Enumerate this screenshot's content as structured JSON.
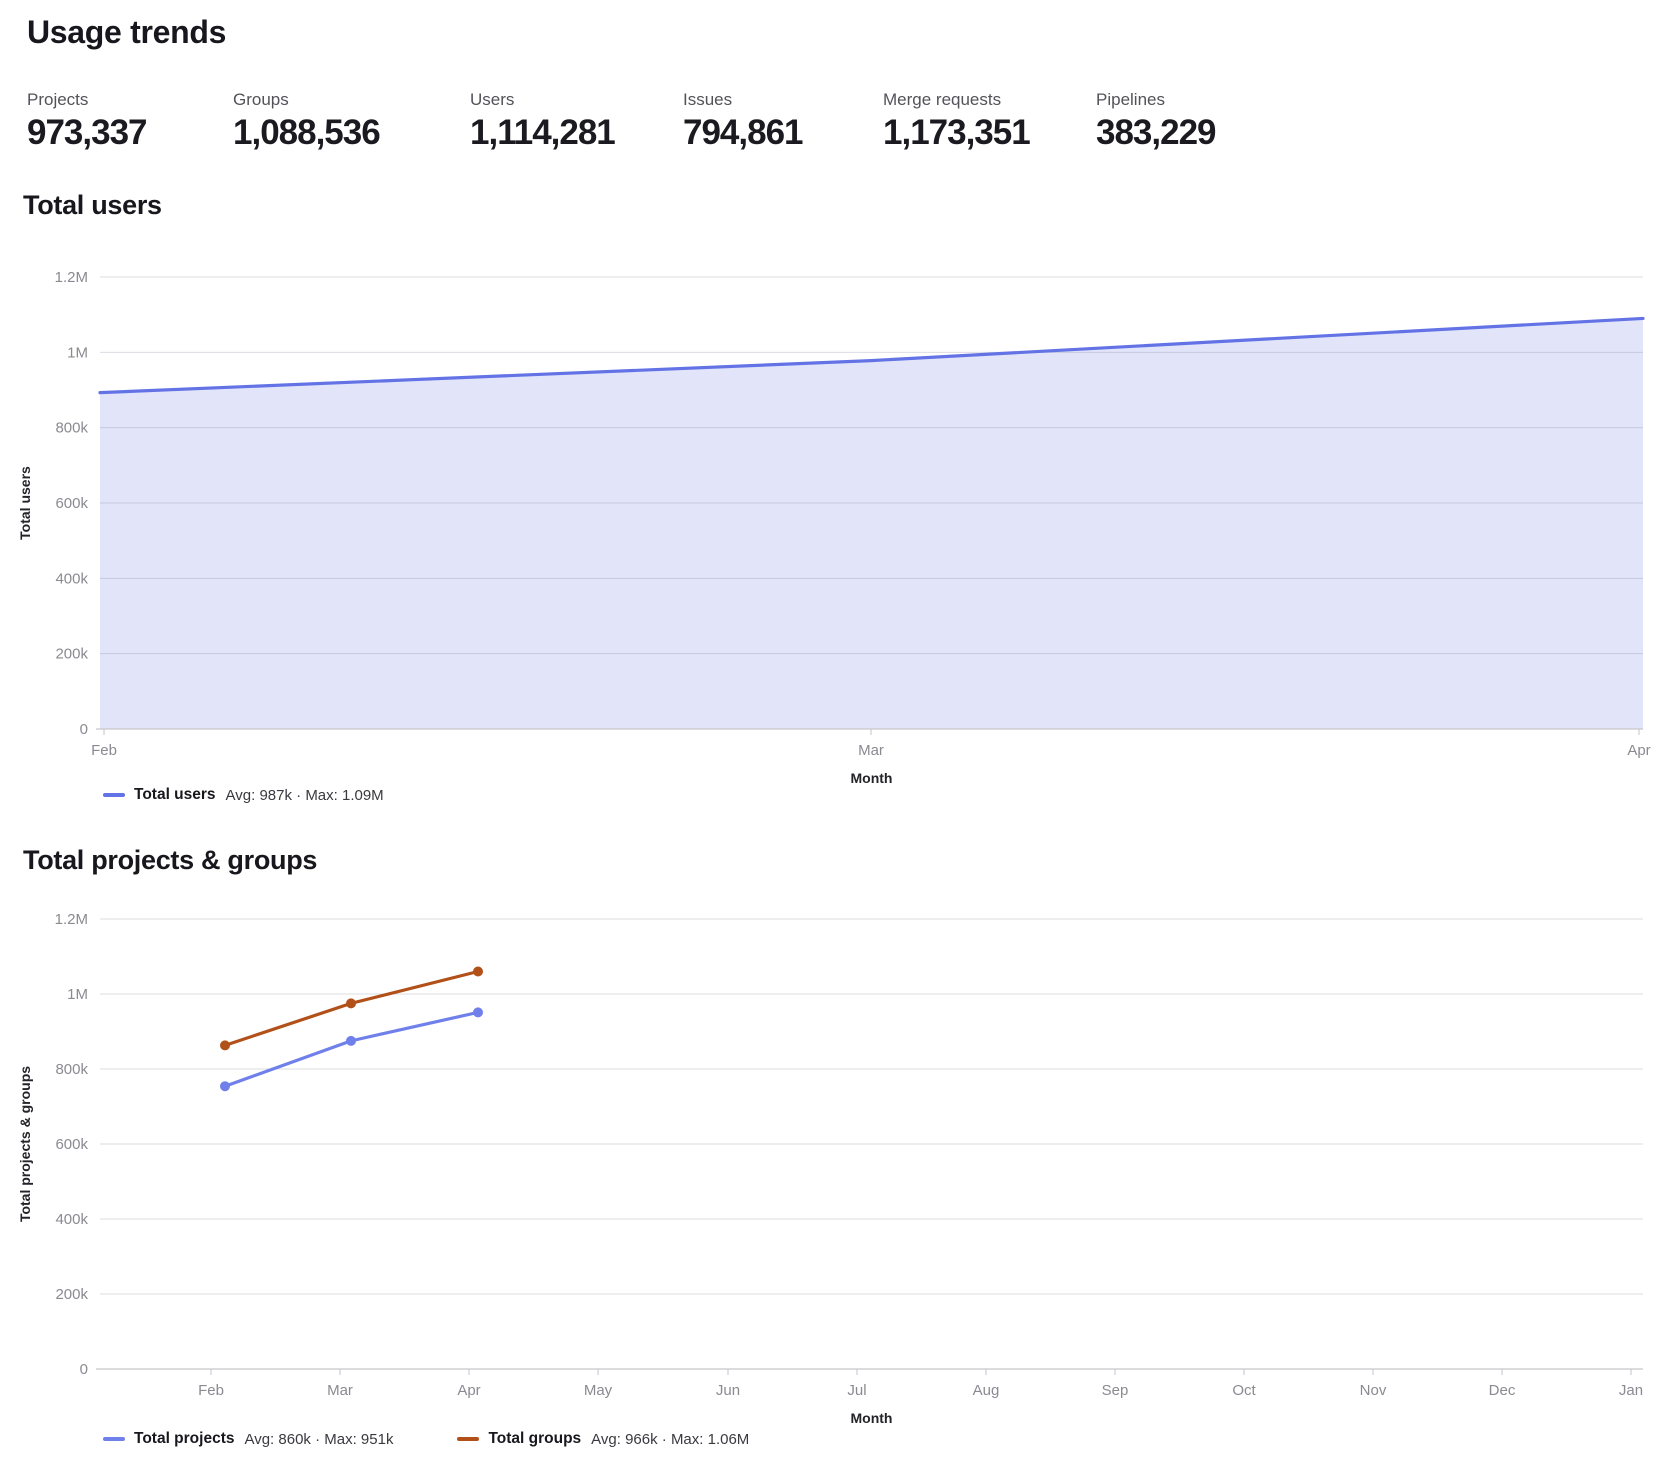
{
  "page": {
    "title": "Usage trends"
  },
  "stats": [
    {
      "label": "Projects",
      "value": "973,337"
    },
    {
      "label": "Groups",
      "value": "1,088,536"
    },
    {
      "label": "Users",
      "value": "1,114,281"
    },
    {
      "label": "Issues",
      "value": "794,861"
    },
    {
      "label": "Merge requests",
      "value": "1,173,351"
    },
    {
      "label": "Pipelines",
      "value": "383,229"
    }
  ],
  "chart_data": [
    {
      "type": "area",
      "title": "Total users",
      "xlabel": "Month",
      "ylabel": "Total users",
      "ylim": [
        0,
        1200000
      ],
      "ytick_labels": [
        "0",
        "200k",
        "400k",
        "600k",
        "800k",
        "1M",
        "1.2M"
      ],
      "x": [
        "Feb",
        "Mar",
        "Apr"
      ],
      "grid": true,
      "legend_position": "bottom-left",
      "series": [
        {
          "name": "Total users",
          "values": [
            893000,
            978000,
            1090000
          ],
          "color": "#6373e6",
          "fill": "#e2e5f9",
          "legend_stats": "Avg: 987k · Max: 1.09M"
        }
      ]
    },
    {
      "type": "line",
      "title": "Total projects & groups",
      "xlabel": "Month",
      "ylabel": "Total projects & groups",
      "ylim": [
        0,
        1200000
      ],
      "ytick_labels": [
        "0",
        "200k",
        "400k",
        "600k",
        "800k",
        "1M",
        "1.2M"
      ],
      "x": [
        "Feb",
        "Mar",
        "Apr",
        "May",
        "Jun",
        "Jul",
        "Aug",
        "Sep",
        "Oct",
        "Nov",
        "Dec",
        "Jan"
      ],
      "grid": true,
      "legend_position": "bottom-left",
      "series": [
        {
          "name": "Total projects",
          "values": [
            754000,
            875000,
            951000
          ],
          "color": "#6f80ea",
          "legend_stats": "Avg: 860k · Max: 951k"
        },
        {
          "name": "Total groups",
          "values": [
            863000,
            975000,
            1060000
          ],
          "color": "#b2501a",
          "legend_stats": "Avg: 966k · Max: 1.06M"
        }
      ]
    }
  ]
}
